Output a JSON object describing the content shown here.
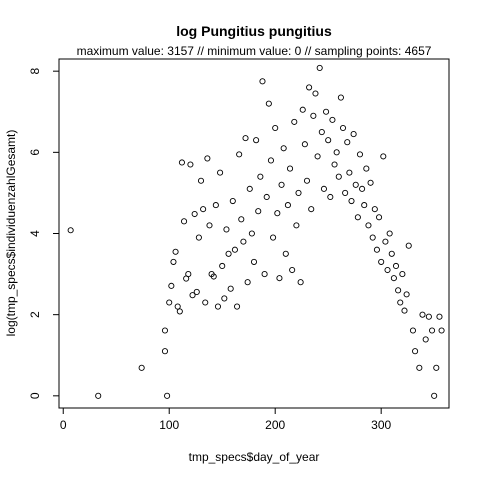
{
  "chart_data": {
    "type": "scatter",
    "title": "log Pungitius pungitius",
    "subtitle": "maximum value: 3157  //  minimum value: 0  // sampling points: 4657",
    "xlabel": "tmp_specs$day_of_year",
    "ylabel": "log(tmp_specs$individuenzahlGesamt)",
    "xlim": [
      -4,
      364
    ],
    "ylim": [
      -0.3,
      8.3
    ],
    "xticks": [
      0,
      100,
      200,
      300
    ],
    "yticks": [
      0,
      2,
      4,
      6,
      8
    ],
    "grid": false,
    "legend": "none",
    "marker": "open-circle",
    "points": [
      [
        7,
        4.08
      ],
      [
        33,
        0.0
      ],
      [
        74,
        0.69
      ],
      [
        96,
        1.61
      ],
      [
        96,
        1.1
      ],
      [
        98,
        0.0
      ],
      [
        100,
        2.3
      ],
      [
        102,
        2.71
      ],
      [
        104,
        3.3
      ],
      [
        106,
        3.55
      ],
      [
        108,
        2.2
      ],
      [
        110,
        2.08
      ],
      [
        112,
        5.75
      ],
      [
        114,
        4.3
      ],
      [
        116,
        2.89
      ],
      [
        118,
        3.0
      ],
      [
        120,
        5.7
      ],
      [
        122,
        2.48
      ],
      [
        124,
        4.48
      ],
      [
        126,
        2.56
      ],
      [
        128,
        3.9
      ],
      [
        130,
        5.3
      ],
      [
        132,
        4.6
      ],
      [
        134,
        2.3
      ],
      [
        136,
        5.85
      ],
      [
        138,
        4.2
      ],
      [
        140,
        3.0
      ],
      [
        142,
        2.94
      ],
      [
        144,
        4.7
      ],
      [
        146,
        2.2
      ],
      [
        148,
        5.5
      ],
      [
        150,
        3.2
      ],
      [
        152,
        2.4
      ],
      [
        154,
        4.1
      ],
      [
        156,
        3.5
      ],
      [
        158,
        2.64
      ],
      [
        160,
        4.8
      ],
      [
        162,
        3.6
      ],
      [
        164,
        2.2
      ],
      [
        166,
        5.95
      ],
      [
        168,
        4.35
      ],
      [
        170,
        3.8
      ],
      [
        172,
        6.35
      ],
      [
        174,
        2.8
      ],
      [
        176,
        5.1
      ],
      [
        178,
        4.0
      ],
      [
        180,
        3.3
      ],
      [
        182,
        6.3
      ],
      [
        184,
        4.55
      ],
      [
        186,
        5.4
      ],
      [
        188,
        7.75
      ],
      [
        190,
        3.0
      ],
      [
        192,
        4.9
      ],
      [
        194,
        7.2
      ],
      [
        196,
        5.8
      ],
      [
        198,
        3.9
      ],
      [
        200,
        6.6
      ],
      [
        202,
        4.5
      ],
      [
        204,
        2.9
      ],
      [
        206,
        5.2
      ],
      [
        208,
        6.1
      ],
      [
        210,
        3.5
      ],
      [
        212,
        4.7
      ],
      [
        214,
        5.6
      ],
      [
        216,
        3.1
      ],
      [
        218,
        6.75
      ],
      [
        220,
        4.2
      ],
      [
        222,
        5.0
      ],
      [
        224,
        2.8
      ],
      [
        226,
        7.05
      ],
      [
        228,
        6.2
      ],
      [
        230,
        5.3
      ],
      [
        232,
        7.6
      ],
      [
        234,
        4.6
      ],
      [
        236,
        6.9
      ],
      [
        238,
        7.45
      ],
      [
        240,
        5.9
      ],
      [
        242,
        8.08
      ],
      [
        244,
        6.5
      ],
      [
        246,
        5.1
      ],
      [
        248,
        7.0
      ],
      [
        250,
        6.3
      ],
      [
        252,
        4.9
      ],
      [
        254,
        6.8
      ],
      [
        256,
        5.7
      ],
      [
        258,
        6.0
      ],
      [
        260,
        5.4
      ],
      [
        262,
        7.35
      ],
      [
        264,
        6.6
      ],
      [
        266,
        5.0
      ],
      [
        268,
        6.25
      ],
      [
        270,
        5.5
      ],
      [
        272,
        4.8
      ],
      [
        274,
        6.45
      ],
      [
        276,
        5.2
      ],
      [
        278,
        4.4
      ],
      [
        280,
        5.95
      ],
      [
        282,
        5.1
      ],
      [
        284,
        4.7
      ],
      [
        286,
        5.6
      ],
      [
        288,
        4.2
      ],
      [
        290,
        5.25
      ],
      [
        292,
        3.9
      ],
      [
        294,
        4.6
      ],
      [
        296,
        3.6
      ],
      [
        298,
        4.4
      ],
      [
        300,
        3.3
      ],
      [
        302,
        5.9
      ],
      [
        304,
        3.8
      ],
      [
        306,
        3.1
      ],
      [
        308,
        4.0
      ],
      [
        310,
        3.5
      ],
      [
        312,
        2.9
      ],
      [
        314,
        3.2
      ],
      [
        316,
        2.6
      ],
      [
        318,
        2.3
      ],
      [
        320,
        3.0
      ],
      [
        322,
        2.1
      ],
      [
        324,
        2.5
      ],
      [
        326,
        3.7
      ],
      [
        330,
        1.61
      ],
      [
        332,
        1.1
      ],
      [
        336,
        0.69
      ],
      [
        339,
        2.0
      ],
      [
        342,
        1.39
      ],
      [
        345,
        1.95
      ],
      [
        348,
        1.61
      ],
      [
        350,
        0.0
      ],
      [
        352,
        0.69
      ],
      [
        355,
        1.95
      ],
      [
        357,
        1.61
      ]
    ]
  }
}
